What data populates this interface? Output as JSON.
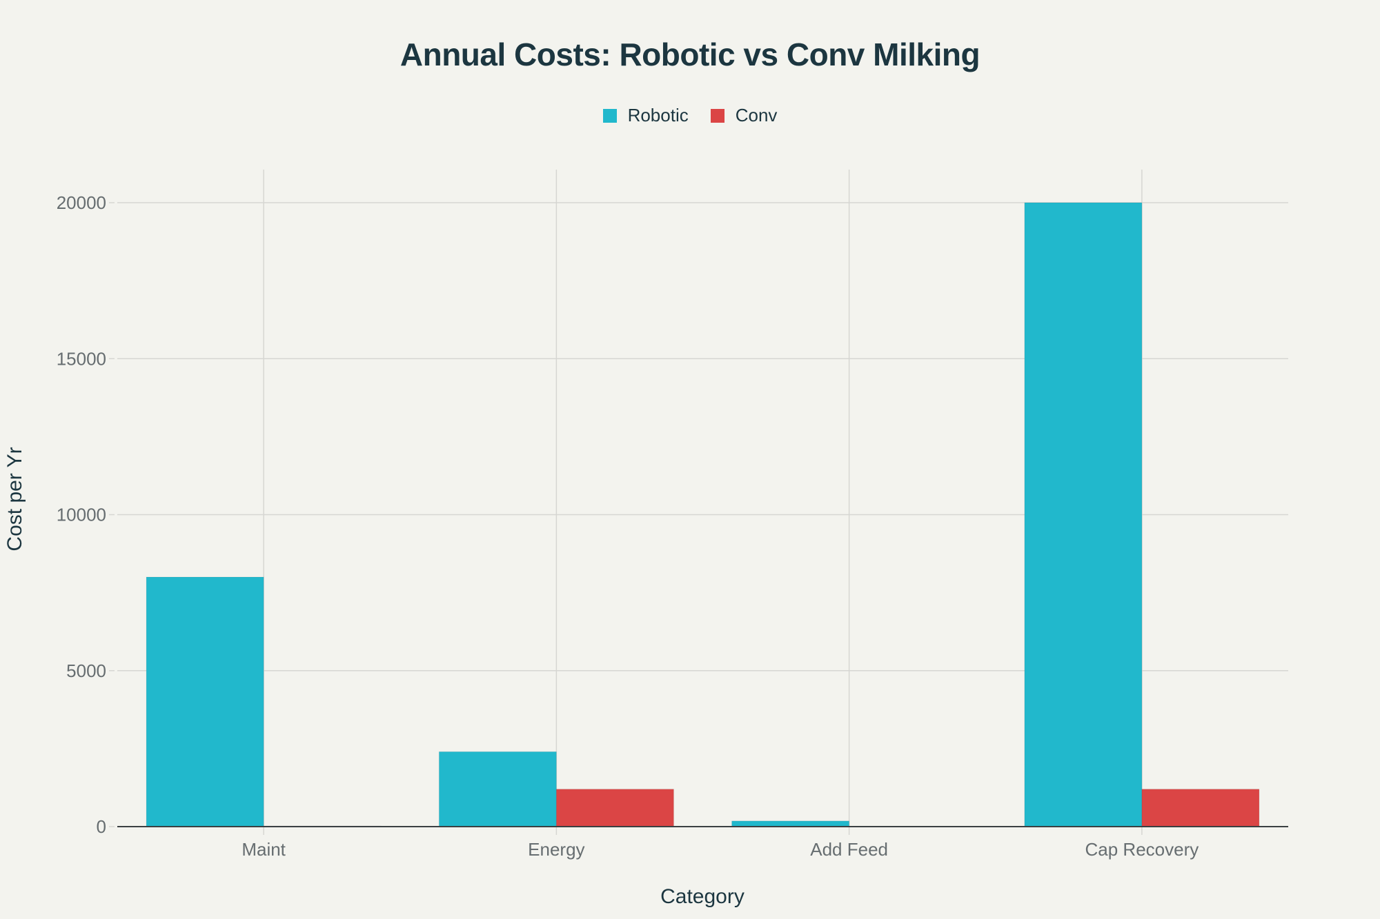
{
  "chart_data": {
    "type": "bar",
    "title": "Annual Costs: Robotic vs Conv Milking",
    "xlabel": "Category",
    "ylabel": "Cost per Yr",
    "categories": [
      "Maint",
      "Energy",
      "Add Feed",
      "Cap Recovery"
    ],
    "series": [
      {
        "name": "Robotic",
        "color": "#21b8cc",
        "values": [
          8000,
          2400,
          180,
          20000
        ]
      },
      {
        "name": "Conv",
        "color": "#db4545",
        "values": [
          20,
          1200,
          0,
          1200
        ]
      }
    ],
    "ylim": [
      0,
      20000
    ],
    "yticks": [
      0,
      5000,
      10000,
      15000,
      20000
    ],
    "grid": true,
    "legend_position": "top-center"
  }
}
